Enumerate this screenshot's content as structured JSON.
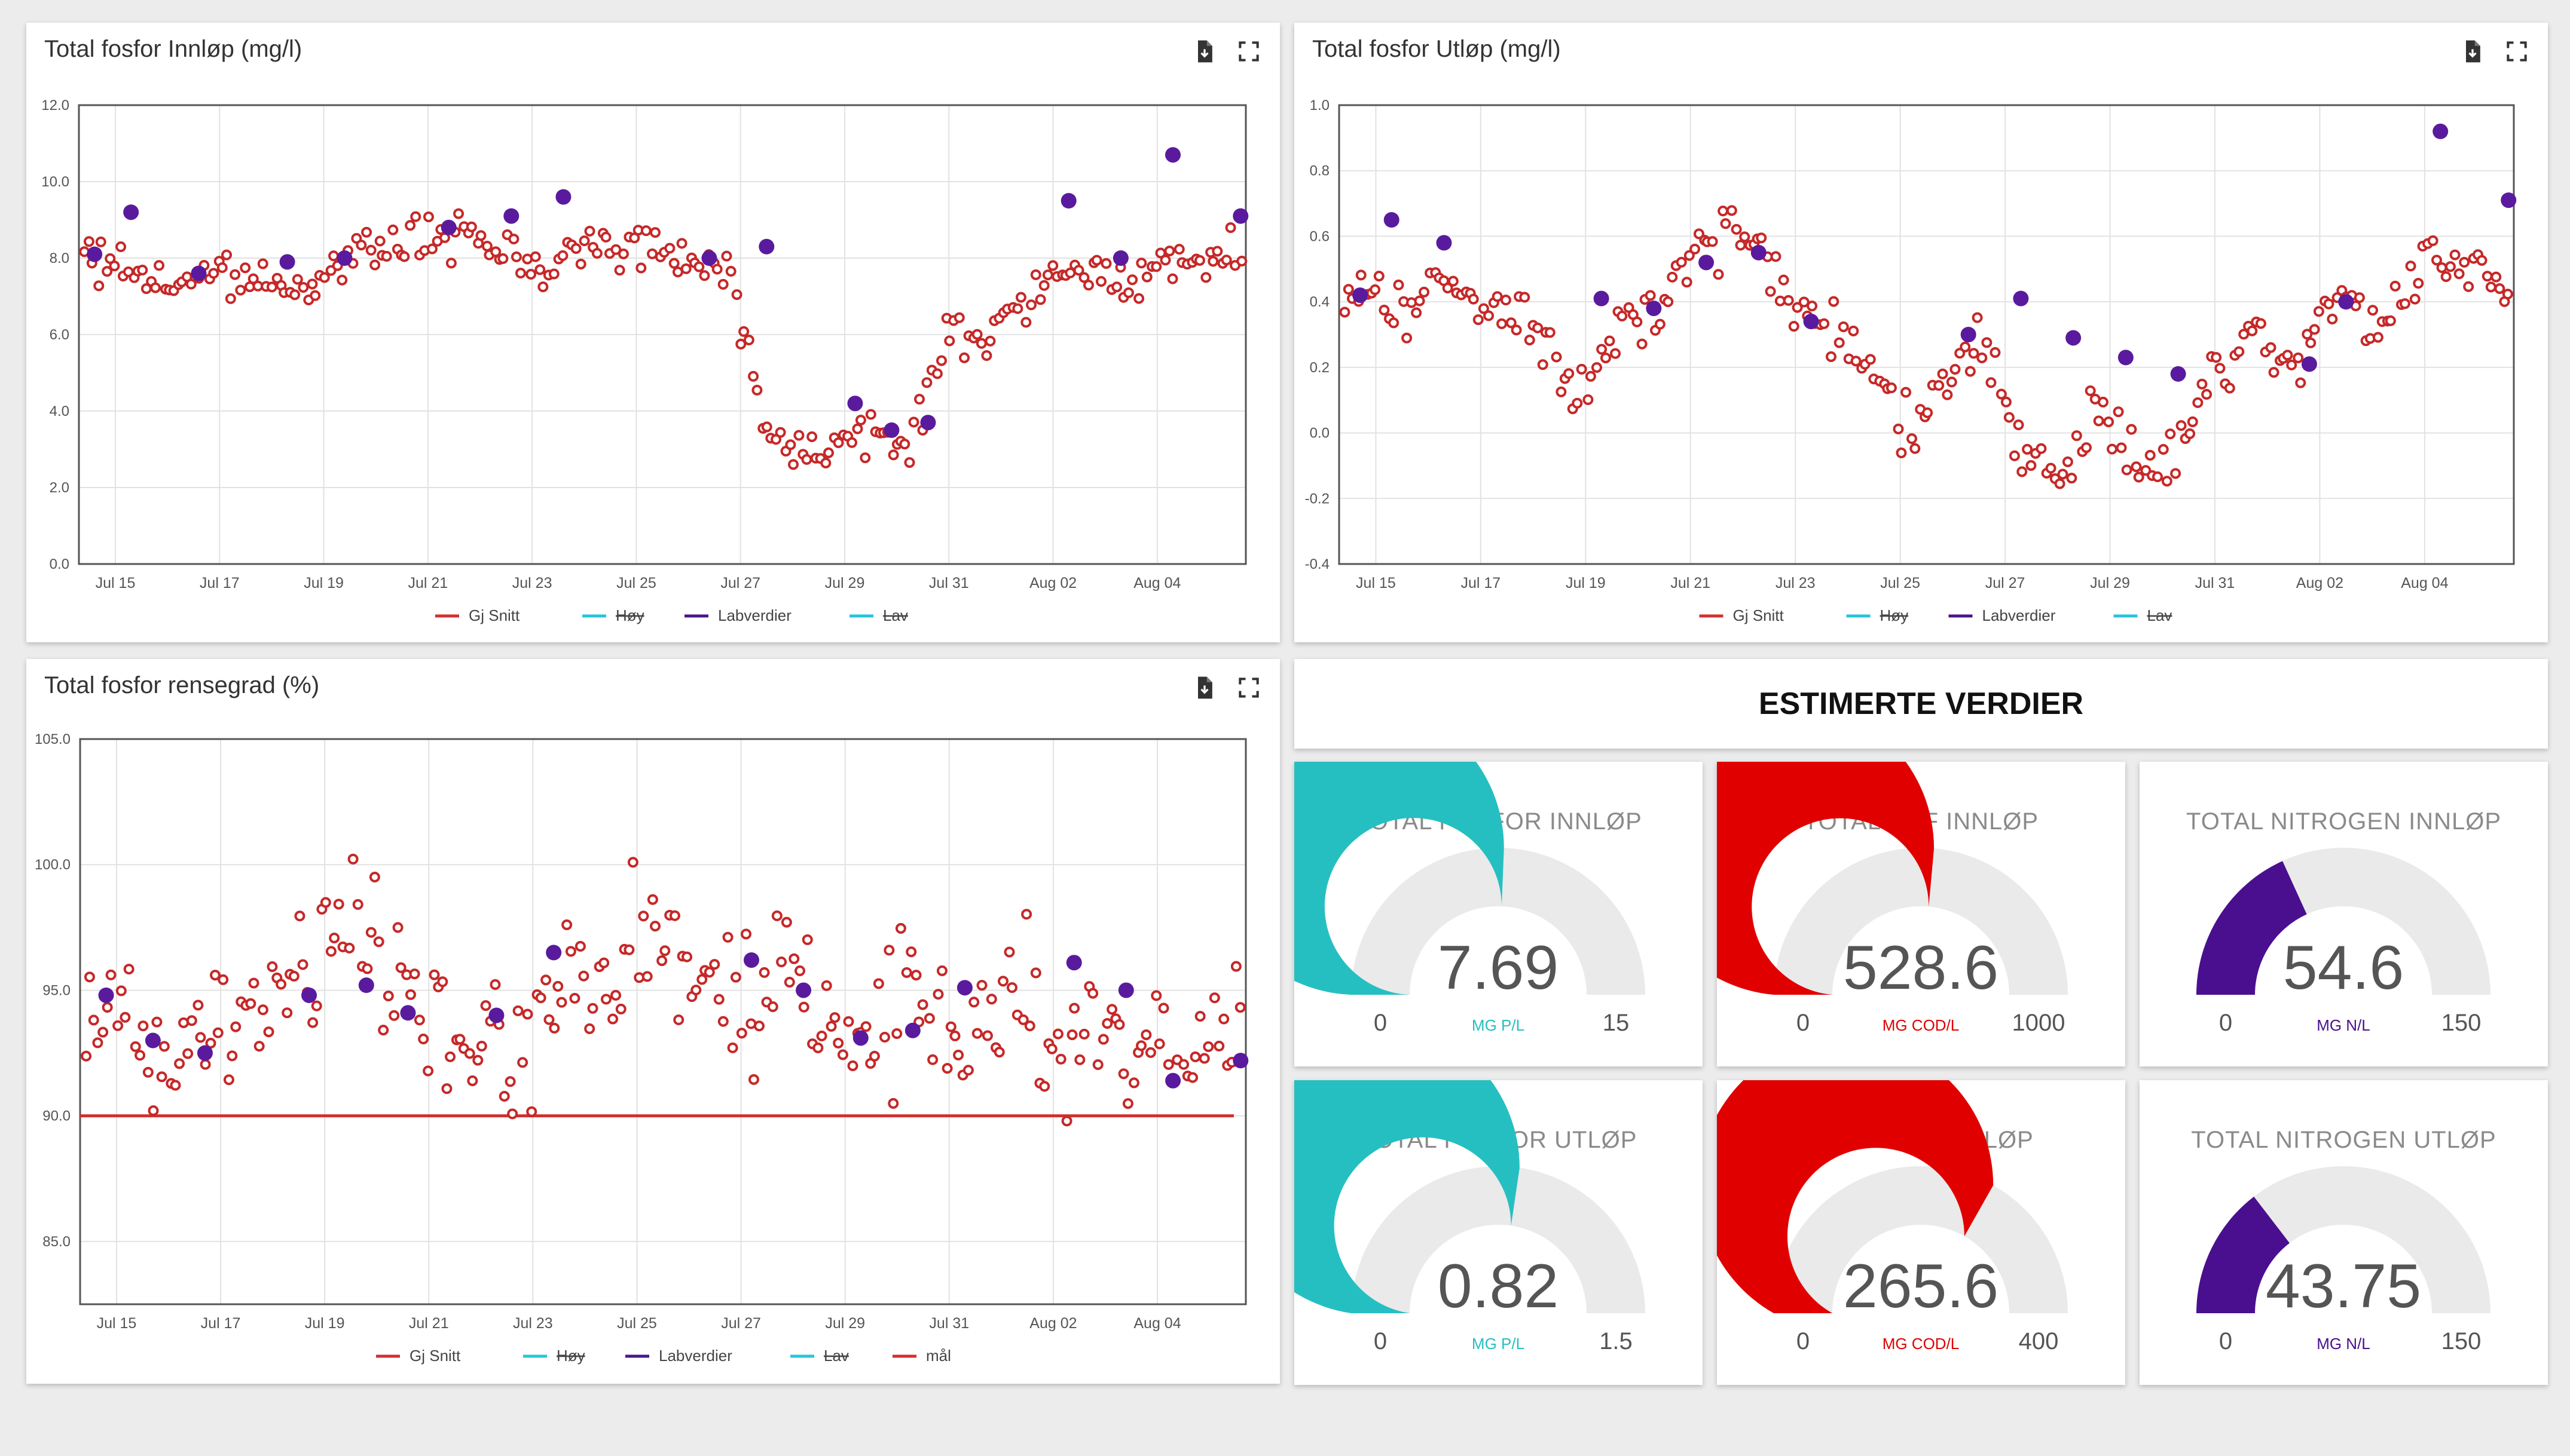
{
  "charts": {
    "innlop": {
      "title": "Total fosfor Innløp (mg/l)",
      "chart_data": {
        "type": "scatter",
        "title": "Total fosfor Innløp (mg/l)",
        "ylim": [
          0,
          12
        ],
        "yticks": [
          "0.0",
          "2.0",
          "4.0",
          "6.0",
          "8.0",
          "10.0",
          "12.0"
        ],
        "yticks_values": [
          0,
          2,
          4,
          6,
          8,
          10,
          12
        ],
        "xlim": [
          14.3,
          36.7
        ],
        "xticks": [
          "Jul 15",
          "Jul 17",
          "Jul 19",
          "Jul 21",
          "Jul 23",
          "Jul 25",
          "Jul 27",
          "Jul 29",
          "Jul 31",
          "Aug 02",
          "Aug 04"
        ],
        "xticks_values": [
          15,
          17,
          19,
          21,
          23,
          25,
          27,
          29,
          31,
          33,
          35
        ],
        "grid": true,
        "legend": [
          "Gj Snitt",
          "Høy",
          "Labverdier",
          "Lav"
        ],
        "legend_colors": [
          "#d32f2f",
          "#26c6da",
          "#4a148c",
          "#26c6da"
        ],
        "legend_struck": [
          false,
          true,
          false,
          true
        ],
        "series": [
          {
            "name": "Gj Snitt",
            "anchors": [
              [
                14.3,
                8.0
              ],
              [
                15,
                7.8
              ],
              [
                16,
                7.4
              ],
              [
                17,
                7.5
              ],
              [
                18,
                7.3
              ],
              [
                19,
                7.6
              ],
              [
                20,
                8.3
              ],
              [
                21,
                8.6
              ],
              [
                22,
                8.4
              ],
              [
                23,
                8.0
              ],
              [
                24,
                8.3
              ],
              [
                25,
                8.4
              ],
              [
                26,
                8.0
              ],
              [
                26.8,
                7.6
              ],
              [
                27.2,
                5.0
              ],
              [
                27.7,
                3.2
              ],
              [
                28.5,
                3.0
              ],
              [
                29.3,
                3.4
              ],
              [
                30.2,
                3.1
              ],
              [
                31,
                5.9
              ],
              [
                32,
                6.2
              ],
              [
                33,
                7.4
              ],
              [
                34,
                7.6
              ],
              [
                35,
                7.6
              ],
              [
                36.7,
                8.3
              ]
            ]
          },
          {
            "name": "Labverdier",
            "values": [
              [
                14.6,
                8.1
              ],
              [
                15.3,
                9.2
              ],
              [
                16.6,
                7.6
              ],
              [
                18.3,
                7.9
              ],
              [
                19.4,
                8.0
              ],
              [
                21.4,
                8.8
              ],
              [
                22.6,
                9.1
              ],
              [
                23.6,
                9.6
              ],
              [
                26.4,
                8.0
              ],
              [
                27.5,
                8.3
              ],
              [
                29.2,
                4.2
              ],
              [
                29.9,
                3.5
              ],
              [
                30.6,
                3.7
              ],
              [
                33.3,
                9.5
              ],
              [
                34.3,
                8.0
              ],
              [
                35.3,
                10.7
              ],
              [
                36.6,
                9.1
              ]
            ]
          }
        ]
      }
    },
    "utlop": {
      "title": "Total fosfor Utløp (mg/l)",
      "chart_data": {
        "type": "scatter",
        "title": "Total fosfor Utløp (mg/l)",
        "ylim": [
          -0.4,
          1.0
        ],
        "yticks": [
          "-0.4",
          "-0.2",
          "0.0",
          "0.2",
          "0.4",
          "0.6",
          "0.8",
          "1.0"
        ],
        "yticks_values": [
          -0.4,
          -0.2,
          0,
          0.2,
          0.4,
          0.6,
          0.8,
          1.0
        ],
        "xlim": [
          14.3,
          36.7
        ],
        "xticks": [
          "Jul 15",
          "Jul 17",
          "Jul 19",
          "Jul 21",
          "Jul 23",
          "Jul 25",
          "Jul 27",
          "Jul 29",
          "Jul 31",
          "Aug 02",
          "Aug 04"
        ],
        "xticks_values": [
          15,
          17,
          19,
          21,
          23,
          25,
          27,
          29,
          31,
          33,
          35
        ],
        "grid": true,
        "legend": [
          "Gj Snitt",
          "Høy",
          "Labverdier",
          "Lav"
        ],
        "legend_colors": [
          "#d32f2f",
          "#26c6da",
          "#4a148c",
          "#26c6da"
        ],
        "legend_struck": [
          false,
          true,
          false,
          true
        ],
        "series": [
          {
            "name": "Gj Snitt",
            "anchors": [
              [
                14.3,
                0.35
              ],
              [
                15,
                0.45
              ],
              [
                15.6,
                0.4
              ],
              [
                16.2,
                0.45
              ],
              [
                17,
                0.4
              ],
              [
                18,
                0.35
              ],
              [
                18.8,
                0.1
              ],
              [
                19.5,
                0.3
              ],
              [
                20.5,
                0.4
              ],
              [
                21.3,
                0.55
              ],
              [
                22,
                0.62
              ],
              [
                22.8,
                0.45
              ],
              [
                23.8,
                0.3
              ],
              [
                24.6,
                0.15
              ],
              [
                25.3,
                0.0
              ],
              [
                26,
                0.2
              ],
              [
                26.6,
                0.3
              ],
              [
                27.2,
                0.0
              ],
              [
                28,
                -0.18
              ],
              [
                28.7,
                0.1
              ],
              [
                29.5,
                -0.05
              ],
              [
                30.3,
                -0.1
              ],
              [
                31,
                0.22
              ],
              [
                31.8,
                0.28
              ],
              [
                32.5,
                0.2
              ],
              [
                33.3,
                0.45
              ],
              [
                34.1,
                0.3
              ],
              [
                35,
                0.5
              ],
              [
                36,
                0.5
              ],
              [
                36.7,
                0.42
              ]
            ]
          },
          {
            "name": "Labverdier",
            "values": [
              [
                14.7,
                0.42
              ],
              [
                15.3,
                0.65
              ],
              [
                16.3,
                0.58
              ],
              [
                19.3,
                0.41
              ],
              [
                20.3,
                0.38
              ],
              [
                21.3,
                0.52
              ],
              [
                22.3,
                0.55
              ],
              [
                23.3,
                0.34
              ],
              [
                26.3,
                0.3
              ],
              [
                27.3,
                0.41
              ],
              [
                28.3,
                0.29
              ],
              [
                29.3,
                0.23
              ],
              [
                30.3,
                0.18
              ],
              [
                32.8,
                0.21
              ],
              [
                33.5,
                0.4
              ],
              [
                35.3,
                0.92
              ],
              [
                36.6,
                0.71
              ]
            ]
          }
        ]
      }
    },
    "rensegrad": {
      "title": "Total fosfor rensegrad (%)",
      "chart_data": {
        "type": "scatter",
        "title": "Total fosfor rensegrad (%)",
        "ylim": [
          82.5,
          105
        ],
        "yticks": [
          "85.0",
          "90.0",
          "95.0",
          "100.0",
          "105.0"
        ],
        "yticks_values": [
          85,
          90,
          95,
          100,
          105
        ],
        "xlim": [
          14.3,
          36.7
        ],
        "xticks": [
          "Jul 15",
          "Jul 17",
          "Jul 19",
          "Jul 21",
          "Jul 23",
          "Jul 25",
          "Jul 27",
          "Jul 29",
          "Jul 31",
          "Aug 02",
          "Aug 04"
        ],
        "xticks_values": [
          15,
          17,
          19,
          21,
          23,
          25,
          27,
          29,
          31,
          33,
          35
        ],
        "grid": true,
        "legend": [
          "Gj Snitt",
          "Høy",
          "Labverdier",
          "Lav",
          "mål"
        ],
        "legend_colors": [
          "#d32f2f",
          "#26c6da",
          "#4a148c",
          "#26c6da",
          "#d32f2f"
        ],
        "legend_struck": [
          false,
          true,
          false,
          true,
          false
        ],
        "target": 90,
        "series": [
          {
            "name": "Gj Snitt",
            "anchors": [
              [
                14.3,
                94.5
              ],
              [
                15,
                93.0
              ],
              [
                16,
                92.5
              ],
              [
                17,
                93.0
              ],
              [
                18,
                94.5
              ],
              [
                19,
                97.0
              ],
              [
                19.8,
                97.5
              ],
              [
                20.5,
                95.5
              ],
              [
                21.3,
                93.5
              ],
              [
                22.2,
                92.5
              ],
              [
                23,
                93.5
              ],
              [
                23.8,
                96.0
              ],
              [
                24.5,
                95.5
              ],
              [
                25.2,
                97.5
              ],
              [
                26,
                96.5
              ],
              [
                26.8,
                94.0
              ],
              [
                27.4,
                93.0
              ],
              [
                28,
                96.5
              ],
              [
                28.8,
                94.5
              ],
              [
                29.5,
                93.0
              ],
              [
                30.3,
                95.0
              ],
              [
                31,
                94.0
              ],
              [
                31.7,
                92.5
              ],
              [
                32.4,
                95.0
              ],
              [
                33,
                92.5
              ],
              [
                33.8,
                94.0
              ],
              [
                34.5,
                92.5
              ],
              [
                35.3,
                92.0
              ],
              [
                36.7,
                93.5
              ]
            ]
          },
          {
            "name": "Labverdier",
            "values": [
              [
                14.8,
                94.8
              ],
              [
                15.7,
                93.0
              ],
              [
                16.7,
                92.5
              ],
              [
                18.7,
                94.8
              ],
              [
                19.8,
                95.2
              ],
              [
                20.6,
                94.1
              ],
              [
                22.3,
                94.0
              ],
              [
                23.4,
                96.5
              ],
              [
                27.2,
                96.2
              ],
              [
                28.2,
                95.0
              ],
              [
                29.3,
                93.1
              ],
              [
                30.3,
                93.4
              ],
              [
                31.3,
                95.1
              ],
              [
                33.4,
                96.1
              ],
              [
                34.4,
                95.0
              ],
              [
                35.3,
                91.4
              ],
              [
                36.6,
                92.2
              ]
            ]
          }
        ]
      }
    }
  },
  "estimated": {
    "header": "ESTIMERTE VERDIER",
    "gauges": [
      {
        "title": "TOTAL FOSFOR INNLØP",
        "value_label": "7.69",
        "value": 7.69,
        "min": "0",
        "max": "15",
        "max_value": 15,
        "unit": "MG P/L",
        "color": "#26bfc1"
      },
      {
        "title": "TOTAL KOF INNLØP",
        "value_label": "528.6",
        "value": 528.6,
        "min": "0",
        "max": "1000",
        "max_value": 1000,
        "unit": "MG COD/L",
        "color": "#e00000"
      },
      {
        "title": "TOTAL NITROGEN INNLØP",
        "value_label": "54.6",
        "value": 54.6,
        "min": "0",
        "max": "150",
        "max_value": 150,
        "unit": "MG N/L",
        "color": "#4a0f8f"
      },
      {
        "title": "TOTAL FOSFOR UTLØP",
        "value_label": "0.82",
        "value": 0.82,
        "min": "0",
        "max": "1.5",
        "max_value": 1.5,
        "unit": "MG P/L",
        "color": "#26bfc1"
      },
      {
        "title": "TOTAL KOF UTLØP",
        "value_label": "265.6",
        "value": 265.6,
        "min": "0",
        "max": "400",
        "max_value": 400,
        "unit": "MG COD/L",
        "color": "#e00000"
      },
      {
        "title": "TOTAL NITROGEN UTLØP",
        "value_label": "43.75",
        "value": 43.75,
        "min": "0",
        "max": "150",
        "max_value": 150,
        "unit": "MG N/L",
        "color": "#4a0f8f"
      }
    ]
  },
  "icons": [
    "download-icon",
    "fullscreen-icon"
  ]
}
